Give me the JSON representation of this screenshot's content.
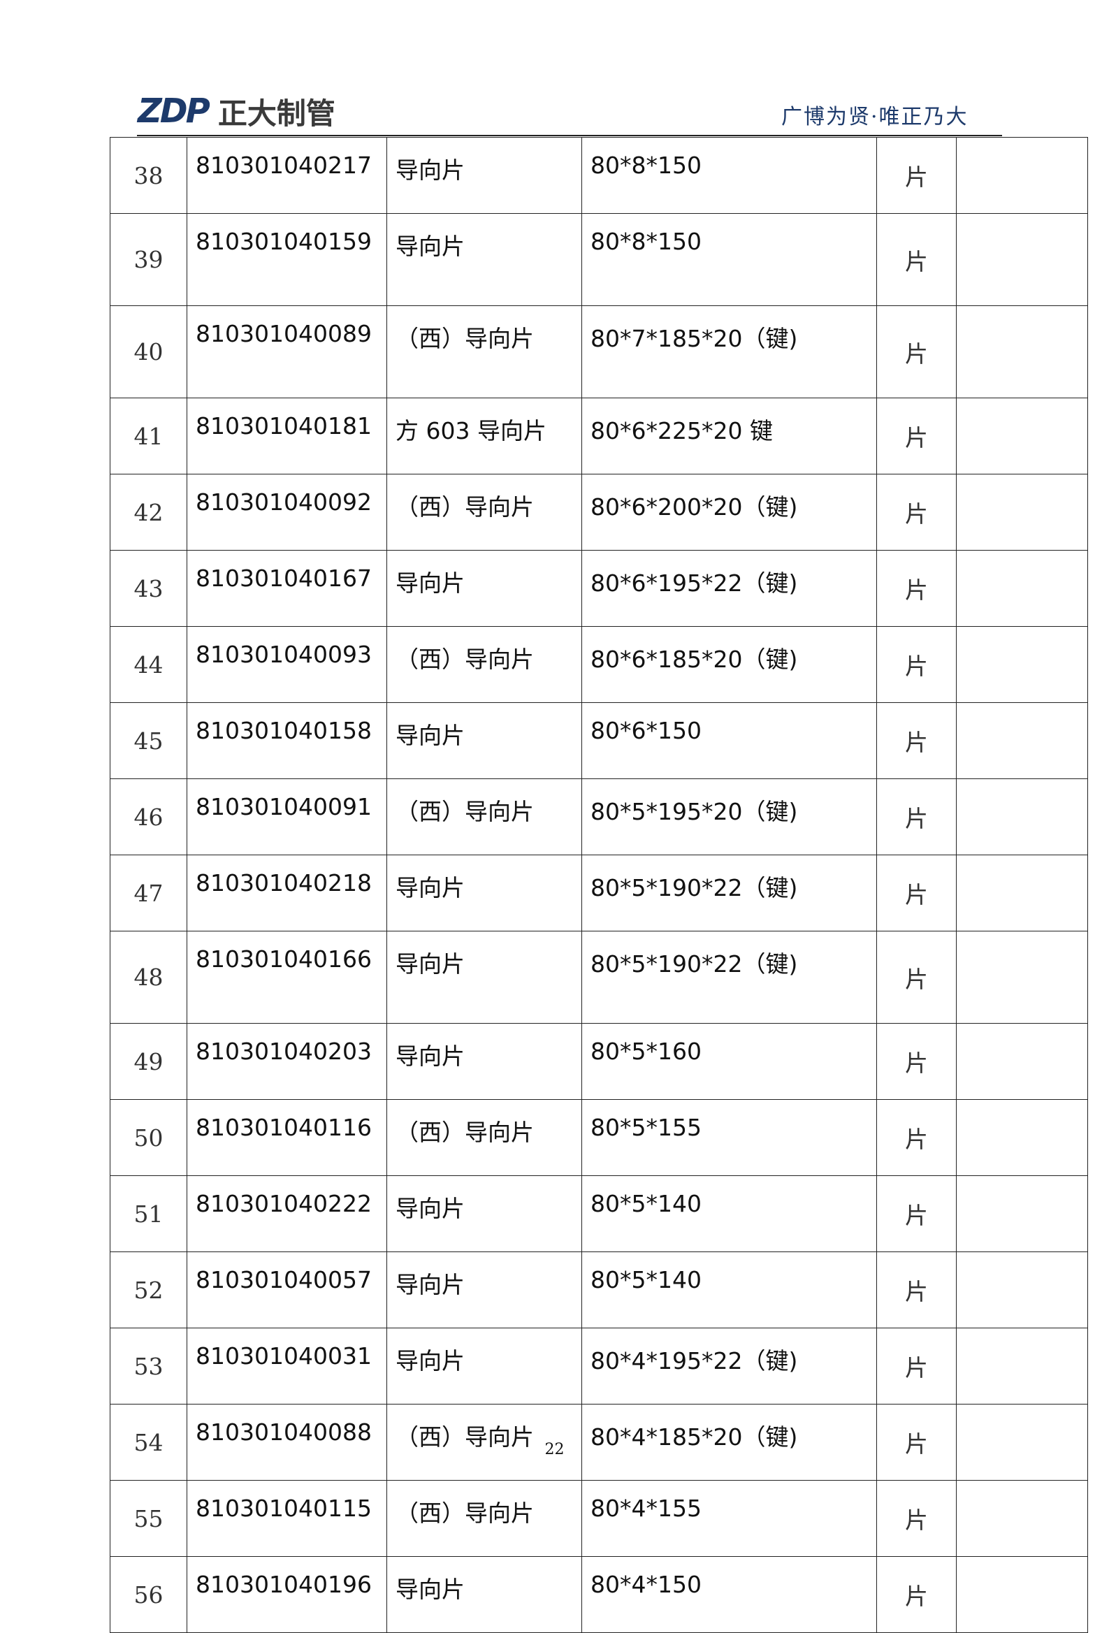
{
  "header": {
    "logo_mark": "ZDP",
    "logo_name": "正大制管",
    "slogan": "广博为贤·唯正乃大",
    "brand_color": "#1d3a6b"
  },
  "table": {
    "rows": [
      {
        "no": "38",
        "code": "810301040217",
        "name": "导向片",
        "spec": "80*8*150",
        "unit": "片",
        "note": ""
      },
      {
        "no": "39",
        "code": "810301040159",
        "name": "导向片",
        "spec": "80*8*150",
        "unit": "片",
        "note": ""
      },
      {
        "no": "40",
        "code": "810301040089",
        "name": "（西）导向片",
        "spec": "80*7*185*20（键)",
        "unit": "片",
        "note": ""
      },
      {
        "no": "41",
        "code": "810301040181",
        "name": "方 603 导向片",
        "spec": "80*6*225*20 键",
        "unit": "片",
        "note": ""
      },
      {
        "no": "42",
        "code": "810301040092",
        "name": "（西）导向片",
        "spec": "80*6*200*20（键)",
        "unit": "片",
        "note": ""
      },
      {
        "no": "43",
        "code": "810301040167",
        "name": "导向片",
        "spec": "80*6*195*22（键)",
        "unit": "片",
        "note": ""
      },
      {
        "no": "44",
        "code": "810301040093",
        "name": "（西）导向片",
        "spec": "80*6*185*20（键)",
        "unit": "片",
        "note": ""
      },
      {
        "no": "45",
        "code": "810301040158",
        "name": "导向片",
        "spec": "80*6*150",
        "unit": "片",
        "note": ""
      },
      {
        "no": "46",
        "code": "810301040091",
        "name": "（西）导向片",
        "spec": "80*5*195*20（键)",
        "unit": "片",
        "note": ""
      },
      {
        "no": "47",
        "code": "810301040218",
        "name": "导向片",
        "spec": "80*5*190*22（键)",
        "unit": "片",
        "note": ""
      },
      {
        "no": "48",
        "code": "810301040166",
        "name": "导向片",
        "spec": "80*5*190*22（键)",
        "unit": "片",
        "note": ""
      },
      {
        "no": "49",
        "code": "810301040203",
        "name": "导向片",
        "spec": "80*5*160",
        "unit": "片",
        "note": ""
      },
      {
        "no": "50",
        "code": "810301040116",
        "name": "（西）导向片",
        "spec": "80*5*155",
        "unit": "片",
        "note": ""
      },
      {
        "no": "51",
        "code": "810301040222",
        "name": "导向片",
        "spec": "80*5*140",
        "unit": "片",
        "note": ""
      },
      {
        "no": "52",
        "code": "810301040057",
        "name": "导向片",
        "spec": "80*5*140",
        "unit": "片",
        "note": ""
      },
      {
        "no": "53",
        "code": "810301040031",
        "name": "导向片",
        "spec": "80*4*195*22（键)",
        "unit": "片",
        "note": ""
      },
      {
        "no": "54",
        "code": "810301040088",
        "name": "（西）导向片",
        "spec": "80*4*185*20（键)",
        "unit": "片",
        "note": ""
      },
      {
        "no": "55",
        "code": "810301040115",
        "name": "（西）导向片",
        "spec": "80*4*155",
        "unit": "片",
        "note": ""
      },
      {
        "no": "56",
        "code": "810301040196",
        "name": "导向片",
        "spec": "80*4*150",
        "unit": "片",
        "note": ""
      }
    ]
  },
  "footer": {
    "page_number": "22"
  }
}
